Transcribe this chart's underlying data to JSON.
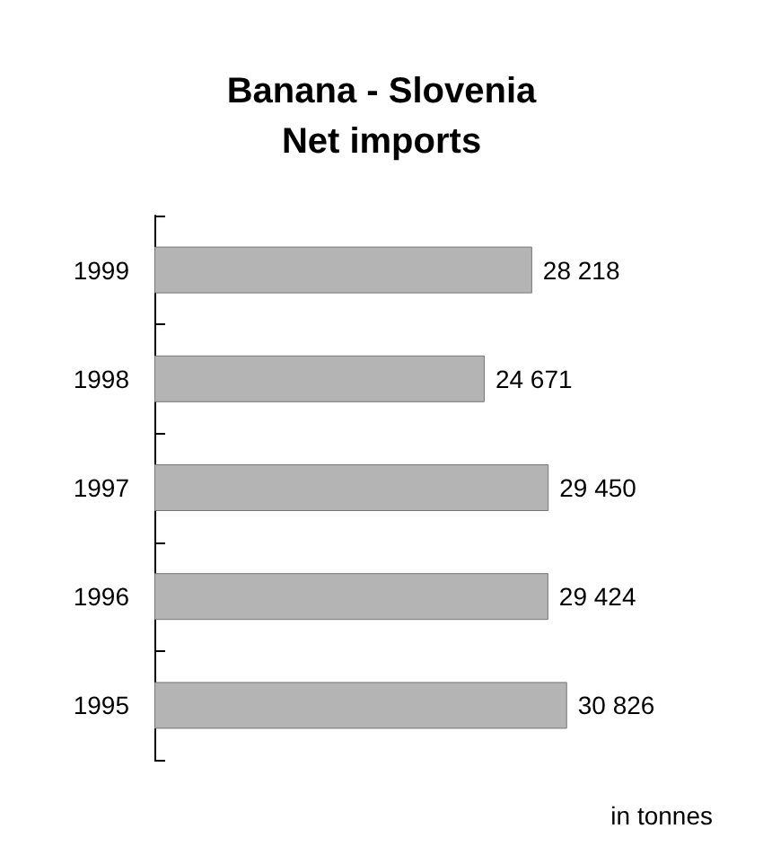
{
  "chart_data": {
    "type": "bar",
    "orientation": "horizontal",
    "title": "Banana - Slovenia",
    "subtitle": "Net imports",
    "categories": [
      "1999",
      "1998",
      "1997",
      "1996",
      "1995"
    ],
    "values": [
      28218,
      24671,
      29450,
      29424,
      30826
    ],
    "value_labels": [
      "28 218",
      "24 671",
      "29 450",
      "29 424",
      "30 826"
    ],
    "color": "#b4b4b4",
    "annotations": [
      "in tonnes"
    ]
  }
}
